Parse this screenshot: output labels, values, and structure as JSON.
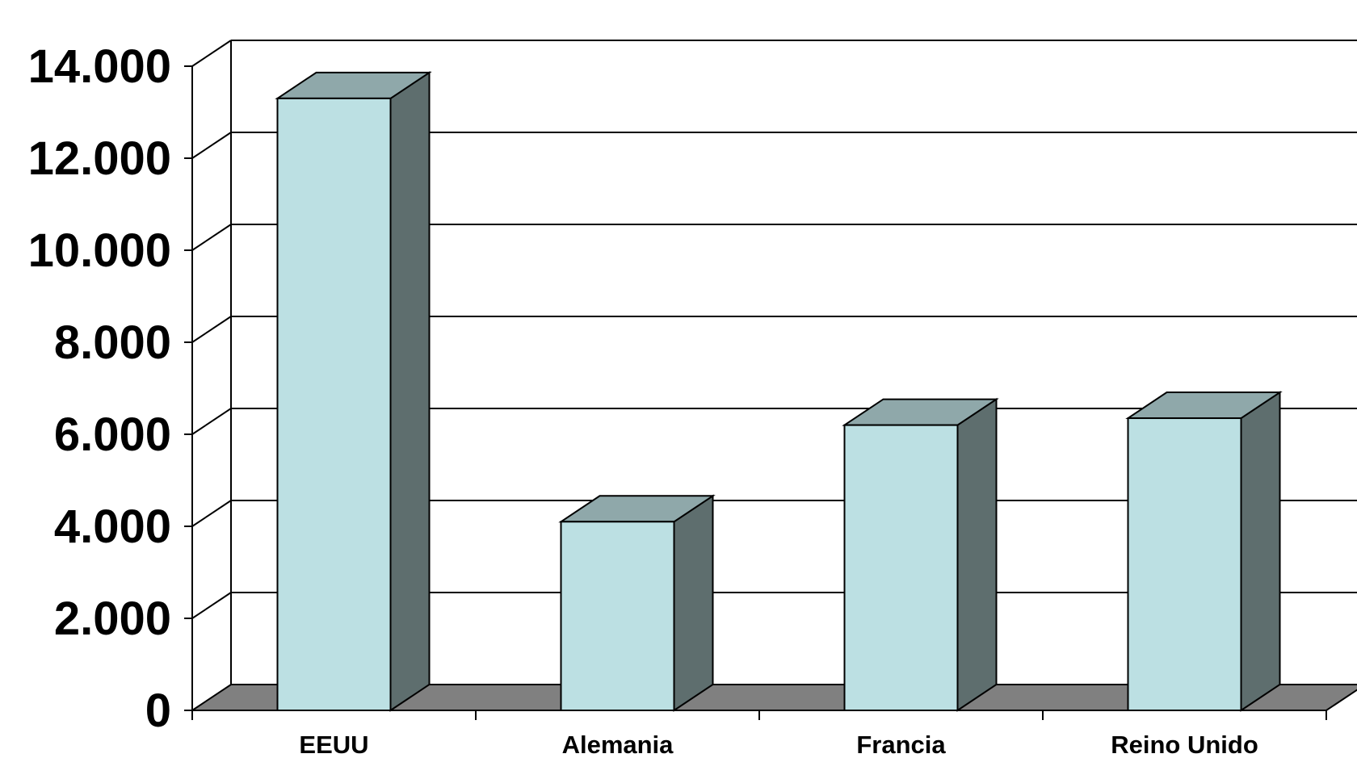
{
  "chart_data": {
    "type": "bar",
    "categories": [
      "EEUU",
      "Alemania",
      "Francia",
      "Reino Unido"
    ],
    "values": [
      13300,
      4100,
      6200,
      6350
    ],
    "ylim": [
      0,
      14000
    ],
    "yticks": [
      0,
      2000,
      4000,
      6000,
      8000,
      10000,
      12000,
      14000
    ],
    "ytick_labels": [
      "0",
      "2.000",
      "4.000",
      "6.000",
      "8.000",
      "10.000",
      "12.000",
      "14.000"
    ],
    "grid": true,
    "style": "3d-column",
    "colors": {
      "front": "#bce0e3",
      "top": "#8fa8aa",
      "side": "#5e6e6e",
      "floor": "#808080",
      "grid": "#000000"
    }
  }
}
